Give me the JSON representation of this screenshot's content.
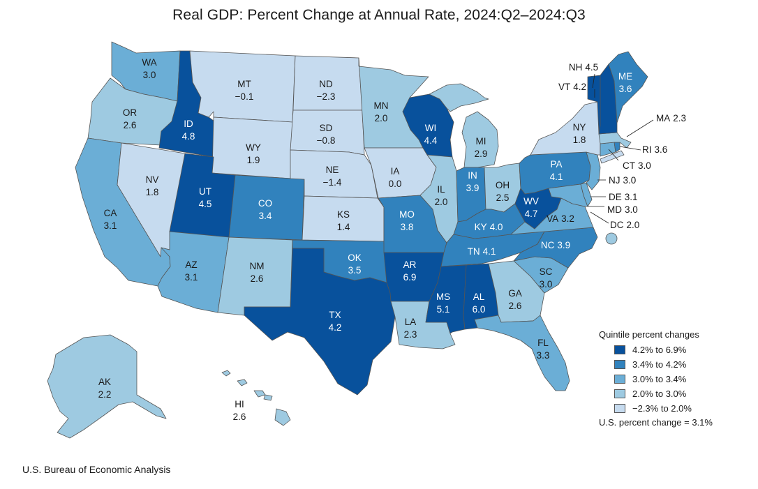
{
  "title": "Real GDP: Percent Change at Annual Rate, 2024:Q2–2024:Q3",
  "source": "U.S. Bureau of Economic Analysis",
  "colors": {
    "q5": "#08519c",
    "q4": "#3182bd",
    "q3": "#6baed6",
    "q2": "#9ecae1",
    "q1": "#c6dbef",
    "border": "#555555"
  },
  "legend": {
    "title": "Quintile percent changes",
    "items": [
      {
        "label": "4.2% to 6.9%",
        "color": "#08519c"
      },
      {
        "label": "3.4% to 4.2%",
        "color": "#3182bd"
      },
      {
        "label": "3.0% to 3.4%",
        "color": "#6baed6"
      },
      {
        "label": "2.0% to 3.0%",
        "color": "#9ecae1"
      },
      {
        "label": "−2.3% to 2.0%",
        "color": "#c6dbef"
      }
    ],
    "us_change": "U.S. percent change = 3.1%"
  },
  "states": [
    {
      "abbr": "WA",
      "value": "3.0"
    },
    {
      "abbr": "OR",
      "value": "2.6"
    },
    {
      "abbr": "CA",
      "value": "3.1"
    },
    {
      "abbr": "NV",
      "value": "1.8"
    },
    {
      "abbr": "ID",
      "value": "4.8"
    },
    {
      "abbr": "MT",
      "value": "−0.1"
    },
    {
      "abbr": "WY",
      "value": "1.9"
    },
    {
      "abbr": "UT",
      "value": "4.5"
    },
    {
      "abbr": "AZ",
      "value": "3.1"
    },
    {
      "abbr": "CO",
      "value": "3.4"
    },
    {
      "abbr": "NM",
      "value": "2.6"
    },
    {
      "abbr": "ND",
      "value": "−2.3"
    },
    {
      "abbr": "SD",
      "value": "−0.8"
    },
    {
      "abbr": "NE",
      "value": "−1.4"
    },
    {
      "abbr": "KS",
      "value": "1.4"
    },
    {
      "abbr": "OK",
      "value": "3.5"
    },
    {
      "abbr": "TX",
      "value": "4.2"
    },
    {
      "abbr": "MN",
      "value": "2.0"
    },
    {
      "abbr": "IA",
      "value": "0.0"
    },
    {
      "abbr": "MO",
      "value": "3.8"
    },
    {
      "abbr": "AR",
      "value": "6.9"
    },
    {
      "abbr": "LA",
      "value": "2.3"
    },
    {
      "abbr": "WI",
      "value": "4.4"
    },
    {
      "abbr": "IL",
      "value": "2.0"
    },
    {
      "abbr": "MI",
      "value": "2.9"
    },
    {
      "abbr": "IN",
      "value": "3.9"
    },
    {
      "abbr": "OH",
      "value": "2.5"
    },
    {
      "abbr": "KY",
      "value": "4.0"
    },
    {
      "abbr": "TN",
      "value": "4.1"
    },
    {
      "abbr": "MS",
      "value": "5.1"
    },
    {
      "abbr": "AL",
      "value": "6.0"
    },
    {
      "abbr": "GA",
      "value": "2.6"
    },
    {
      "abbr": "FL",
      "value": "3.3"
    },
    {
      "abbr": "SC",
      "value": "3.0"
    },
    {
      "abbr": "NC",
      "value": "3.9"
    },
    {
      "abbr": "VA",
      "value": "3.2"
    },
    {
      "abbr": "WV",
      "value": "4.7"
    },
    {
      "abbr": "PA",
      "value": "4.1"
    },
    {
      "abbr": "NY",
      "value": "1.8"
    },
    {
      "abbr": "ME",
      "value": "3.6"
    },
    {
      "abbr": "NH",
      "value": "4.5"
    },
    {
      "abbr": "VT",
      "value": "4.2"
    },
    {
      "abbr": "MA",
      "value": "2.3"
    },
    {
      "abbr": "RI",
      "value": "3.6"
    },
    {
      "abbr": "CT",
      "value": "3.0"
    },
    {
      "abbr": "NJ",
      "value": "3.0"
    },
    {
      "abbr": "DE",
      "value": "3.1"
    },
    {
      "abbr": "MD",
      "value": "3.0"
    },
    {
      "abbr": "DC",
      "value": "2.0"
    },
    {
      "abbr": "AK",
      "value": "2.2"
    },
    {
      "abbr": "HI",
      "value": "2.6"
    }
  ]
}
